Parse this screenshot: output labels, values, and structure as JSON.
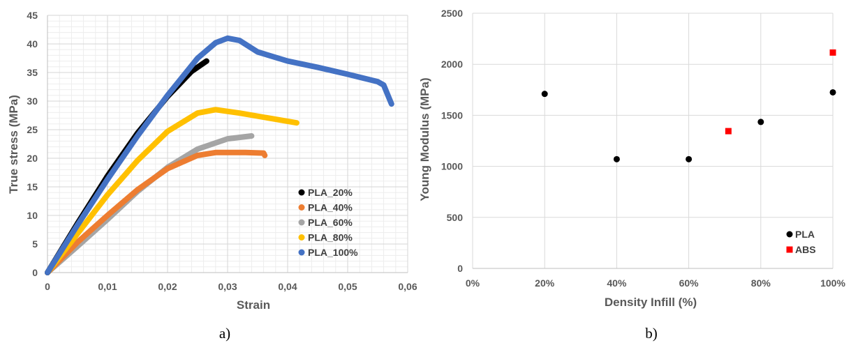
{
  "chart_data": [
    {
      "type": "line",
      "panel_label": "a)",
      "xlabel": "Strain",
      "ylabel": "True stress (MPa)",
      "xlim": [
        0,
        0.06
      ],
      "ylim": [
        0,
        45
      ],
      "x_ticks": [
        "0",
        "0,01",
        "0,02",
        "0,03",
        "0,04",
        "0,05",
        "0,06"
      ],
      "y_ticks": [
        "0",
        "5",
        "10",
        "15",
        "20",
        "25",
        "30",
        "35",
        "40",
        "45"
      ],
      "grid": "major and minor",
      "legend_position": "bottom-right",
      "series": [
        {
          "name": "PLA_20%",
          "color": "#000000",
          "points": [
            [
              0,
              0
            ],
            [
              0.005,
              8.6
            ],
            [
              0.01,
              16.9
            ],
            [
              0.015,
              24.4
            ],
            [
              0.02,
              30.8
            ],
            [
              0.024,
              35.2
            ],
            [
              0.0265,
              37.0
            ]
          ]
        },
        {
          "name": "PLA_40%",
          "color": "#ED7D31",
          "points": [
            [
              0,
              0
            ],
            [
              0.005,
              5.3
            ],
            [
              0.01,
              10.0
            ],
            [
              0.015,
              14.5
            ],
            [
              0.02,
              18.2
            ],
            [
              0.025,
              20.5
            ],
            [
              0.028,
              21.0
            ],
            [
              0.033,
              21.0
            ],
            [
              0.036,
              20.9
            ],
            [
              0.0362,
              20.5
            ]
          ]
        },
        {
          "name": "PLA_60%",
          "color": "#A5A5A5",
          "points": [
            [
              0,
              0
            ],
            [
              0.005,
              4.6
            ],
            [
              0.01,
              9.3
            ],
            [
              0.015,
              14.2
            ],
            [
              0.02,
              18.4
            ],
            [
              0.025,
              21.6
            ],
            [
              0.03,
              23.4
            ],
            [
              0.034,
              23.9
            ]
          ]
        },
        {
          "name": "PLA_80%",
          "color": "#FFC000",
          "points": [
            [
              0,
              0
            ],
            [
              0.005,
              6.8
            ],
            [
              0.01,
              13.6
            ],
            [
              0.015,
              19.6
            ],
            [
              0.02,
              24.7
            ],
            [
              0.025,
              27.9
            ],
            [
              0.028,
              28.5
            ],
            [
              0.032,
              27.9
            ],
            [
              0.037,
              27.0
            ],
            [
              0.0415,
              26.2
            ]
          ]
        },
        {
          "name": "PLA_100%",
          "color": "#4472C4",
          "points": [
            [
              0,
              0
            ],
            [
              0.005,
              8.3
            ],
            [
              0.01,
              16.3
            ],
            [
              0.015,
              23.9
            ],
            [
              0.02,
              31.0
            ],
            [
              0.025,
              37.5
            ],
            [
              0.028,
              40.2
            ],
            [
              0.03,
              41.0
            ],
            [
              0.032,
              40.6
            ],
            [
              0.035,
              38.6
            ],
            [
              0.04,
              37.0
            ],
            [
              0.045,
              35.9
            ],
            [
              0.05,
              34.7
            ],
            [
              0.055,
              33.4
            ],
            [
              0.056,
              32.8
            ],
            [
              0.0573,
              29.5
            ]
          ]
        }
      ]
    },
    {
      "type": "scatter",
      "panel_label": "b)",
      "xlabel": "Density Infill (%)",
      "ylabel": "Young Modulus (MPa)",
      "xlim": [
        0,
        100
      ],
      "ylim": [
        0,
        2500
      ],
      "x_ticks": [
        "0%",
        "20%",
        "40%",
        "60%",
        "80%",
        "100%"
      ],
      "y_ticks": [
        "0",
        "500",
        "1000",
        "1500",
        "2000",
        "2500"
      ],
      "grid": "major",
      "legend_position": "bottom-right",
      "series": [
        {
          "name": "PLA",
          "marker": "circle",
          "color": "#000000",
          "x": [
            20,
            40,
            60,
            80,
            100
          ],
          "y": [
            1710,
            1070,
            1070,
            1435,
            1725
          ]
        },
        {
          "name": "ABS",
          "marker": "square",
          "color": "#FF0000",
          "x": [
            71,
            100
          ],
          "y": [
            1345,
            2115
          ]
        }
      ]
    }
  ]
}
